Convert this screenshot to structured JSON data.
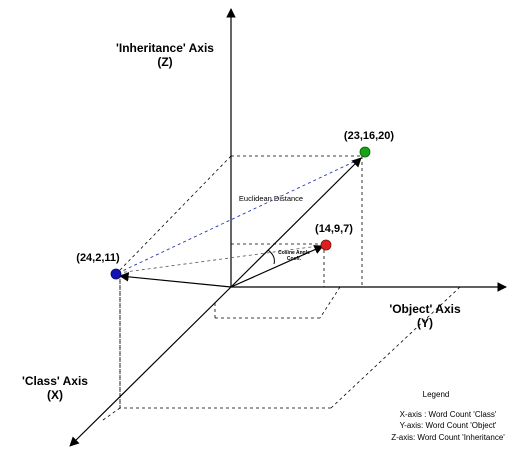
{
  "axes": {
    "z": {
      "title": "'Inheritance' Axis",
      "sub": "(Z)"
    },
    "y": {
      "title": "'Object' Axis",
      "sub": "(Y)"
    },
    "x": {
      "title": "'Class' Axis",
      "sub": "(X)"
    }
  },
  "points": [
    {
      "label": "(23,16,20)",
      "color": "#16a316"
    },
    {
      "label": "(14,9,7)",
      "color": "#e02020"
    },
    {
      "label": "(24,2,11)",
      "color": "#1414b4"
    }
  ],
  "annotations": {
    "euclidean": "Euclidean Distance",
    "cosine_line1": "Cosine Angle",
    "cosine_line2": "Coeff."
  },
  "legend": {
    "title": "Legend",
    "items": [
      "X-axis : Word Count 'Class'",
      "Y-axis: Word Count 'Object'",
      "Z-axis: Word Count 'Inheritance'"
    ]
  }
}
